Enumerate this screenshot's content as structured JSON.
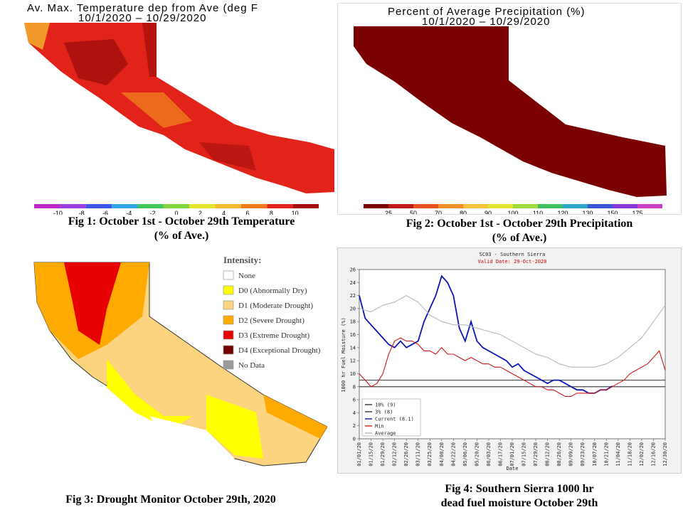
{
  "fig1": {
    "title_line1": "Av. Max. Temperature dep from Ave (deg F",
    "title_line2": "10/1/2020 – 10/29/2020",
    "legend": {
      "ticks": [
        "-10",
        "-8",
        "-6",
        "-4",
        "-2",
        "0",
        "2",
        "4",
        "6",
        "8",
        "10"
      ],
      "colors": [
        "#c026c8",
        "#9d3ee0",
        "#3c56e6",
        "#2fa6e8",
        "#3fc75a",
        "#7fd63a",
        "#e6e62e",
        "#f5b830",
        "#f07a1c",
        "#e2231a",
        "#a30d0d"
      ]
    },
    "caption_line1": "Fig 1: October 1st - October 29th Temperature",
    "caption_line2": "(% of Ave.)"
  },
  "fig2": {
    "title_line1": "Percent of Average Precipitation (%)",
    "title_line2": "10/1/2020 – 10/29/2020",
    "legend": {
      "ticks": [
        "25",
        "50",
        "70",
        "80",
        "90",
        "100",
        "110",
        "120",
        "130",
        "150",
        "175"
      ],
      "colors": [
        "#7a0000",
        "#c01a1a",
        "#e8521d",
        "#f28d2a",
        "#f5c13b",
        "#e2e52f",
        "#9fdb3c",
        "#3fbf5d",
        "#2aa6c8",
        "#3a58d6",
        "#8a39d8",
        "#c53fc9"
      ]
    },
    "caption_line1": "Fig 2: October 1st - October 29th  Precipitation",
    "caption_line2": "(% of Ave.)"
  },
  "fig3": {
    "legend_title": "Intensity:",
    "legend_items": [
      {
        "label": "None",
        "color": "#ffffff"
      },
      {
        "label": "D0 (Abnormally Dry)",
        "color": "#ffff00"
      },
      {
        "label": "D1 (Moderate Drought)",
        "color": "#fcd37f"
      },
      {
        "label": "D2 (Severe Drought)",
        "color": "#ffaa00"
      },
      {
        "label": "D3 (Extreme Drought)",
        "color": "#e60000"
      },
      {
        "label": "D4 (Exceptional Drought)",
        "color": "#730000"
      },
      {
        "label": "No Data",
        "color": "#999999"
      }
    ],
    "caption": "Fig 3: Drought Monitor October 29th, 2020"
  },
  "fig4": {
    "caption_line1": "Fig 4: Southern Sierra 1000 hr",
    "caption_line2": "dead fuel moisture October 29th"
  },
  "chart_data": {
    "type": "line",
    "title": "SC03 - Southern Sierra",
    "subtitle": "Valid Date: 29-Oct-2020",
    "xlabel": "Date",
    "ylabel": "1000 hr Fuel Moisture (%)",
    "ylim": [
      0,
      26
    ],
    "yticks": [
      0,
      2,
      4,
      6,
      8,
      10,
      12,
      14,
      16,
      18,
      20,
      22,
      24,
      26
    ],
    "x_tick_labels": [
      "01/01/20",
      "01/15/20",
      "01/29/20",
      "02/12/20",
      "02/26/20",
      "03/11/20",
      "03/25/20",
      "04/08/20",
      "04/22/20",
      "05/06/20",
      "05/20/20",
      "06/03/20",
      "06/17/20",
      "07/01/20",
      "07/15/20",
      "07/29/20",
      "08/12/20",
      "08/26/20",
      "09/09/20",
      "09/23/20",
      "10/07/20",
      "10/21/20",
      "11/04/20",
      "11/18/20",
      "12/02/20",
      "12/16/20",
      "12/30/20"
    ],
    "grid": false,
    "legend_position": "bottom-left",
    "series": [
      {
        "name": "10% (9)",
        "color": "#333333",
        "constant": 9
      },
      {
        "name": "3% (8)",
        "color": "#333333",
        "constant": 8
      },
      {
        "name": "Current (8.1)",
        "color": "#0a14b4",
        "x": [
          "01/01/20",
          "01/08/20",
          "01/15/20",
          "01/22/20",
          "01/29/20",
          "02/05/20",
          "02/12/20",
          "02/19/20",
          "02/26/20",
          "03/04/20",
          "03/11/20",
          "03/18/20",
          "03/25/20",
          "04/01/20",
          "04/08/20",
          "04/15/20",
          "04/22/20",
          "04/29/20",
          "05/06/20",
          "05/13/20",
          "05/20/20",
          "05/27/20",
          "06/03/20",
          "06/10/20",
          "06/17/20",
          "06/24/20",
          "07/01/20",
          "07/08/20",
          "07/15/20",
          "07/22/20",
          "07/29/20",
          "08/05/20",
          "08/12/20",
          "08/19/20",
          "08/26/20",
          "09/02/20",
          "09/09/20",
          "09/16/20",
          "09/23/20",
          "09/30/20",
          "10/07/20",
          "10/14/20",
          "10/21/20",
          "10/28/20"
        ],
        "values": [
          22,
          18.5,
          17.5,
          16.5,
          15.5,
          14.5,
          14,
          15,
          14,
          14.5,
          15,
          18,
          20,
          22,
          25,
          24,
          22,
          17,
          15,
          18,
          15,
          14,
          13.5,
          13,
          12.5,
          12,
          11,
          11.5,
          10.5,
          10,
          9.5,
          9,
          8.5,
          9,
          9,
          8.5,
          8,
          7.5,
          7.5,
          7,
          7,
          7.5,
          7.5,
          8.1
        ]
      },
      {
        "name": "Min",
        "color": "#d01818",
        "x": [
          "01/01/20",
          "01/08/20",
          "01/15/20",
          "01/22/20",
          "01/29/20",
          "02/05/20",
          "02/12/20",
          "02/19/20",
          "02/26/20",
          "03/04/20",
          "03/11/20",
          "03/18/20",
          "03/25/20",
          "04/01/20",
          "04/08/20",
          "04/15/20",
          "04/22/20",
          "04/29/20",
          "05/06/20",
          "05/13/20",
          "05/20/20",
          "05/27/20",
          "06/03/20",
          "06/10/20",
          "06/17/20",
          "06/24/20",
          "07/01/20",
          "07/08/20",
          "07/15/20",
          "07/22/20",
          "07/29/20",
          "08/05/20",
          "08/12/20",
          "08/19/20",
          "08/26/20",
          "09/02/20",
          "09/09/20",
          "09/16/20",
          "09/23/20",
          "09/30/20",
          "10/07/20",
          "10/14/20",
          "10/21/20",
          "10/28/20",
          "11/04/20",
          "11/11/20",
          "11/18/20",
          "11/25/20",
          "12/02/20",
          "12/09/20",
          "12/16/20",
          "12/23/20",
          "12/30/20"
        ],
        "values": [
          10,
          9,
          8,
          8.5,
          10,
          13,
          15,
          15.5,
          15,
          15,
          14.5,
          13.5,
          13.5,
          13,
          14,
          13,
          13,
          12.5,
          12,
          12.5,
          12,
          11.5,
          11.5,
          11,
          11,
          10.5,
          10,
          9.5,
          9,
          8.5,
          8,
          8,
          7.5,
          7.5,
          7,
          6.5,
          6.5,
          7,
          7,
          7,
          7,
          7.5,
          7.5,
          8,
          8.5,
          9,
          10,
          10.5,
          11,
          11.5,
          12.5,
          13.5,
          10.5
        ]
      },
      {
        "name": "Average",
        "color": "#b8b8b8",
        "x": [
          "01/01/20",
          "01/15/20",
          "01/29/20",
          "02/12/20",
          "02/26/20",
          "03/11/20",
          "03/25/20",
          "04/08/20",
          "04/22/20",
          "05/06/20",
          "05/20/20",
          "06/03/20",
          "06/17/20",
          "07/01/20",
          "07/15/20",
          "07/29/20",
          "08/12/20",
          "08/26/20",
          "09/09/20",
          "09/23/20",
          "10/07/20",
          "10/21/20",
          "11/04/20",
          "11/18/20",
          "12/02/20",
          "12/16/20",
          "12/30/20"
        ],
        "values": [
          20,
          19.5,
          20.5,
          21,
          22,
          21,
          19,
          18,
          17.5,
          17.5,
          17,
          16.5,
          16,
          15,
          14,
          13,
          12.5,
          11.5,
          11,
          11,
          11,
          11.5,
          12.5,
          14,
          15.5,
          18,
          20.5
        ]
      }
    ]
  }
}
